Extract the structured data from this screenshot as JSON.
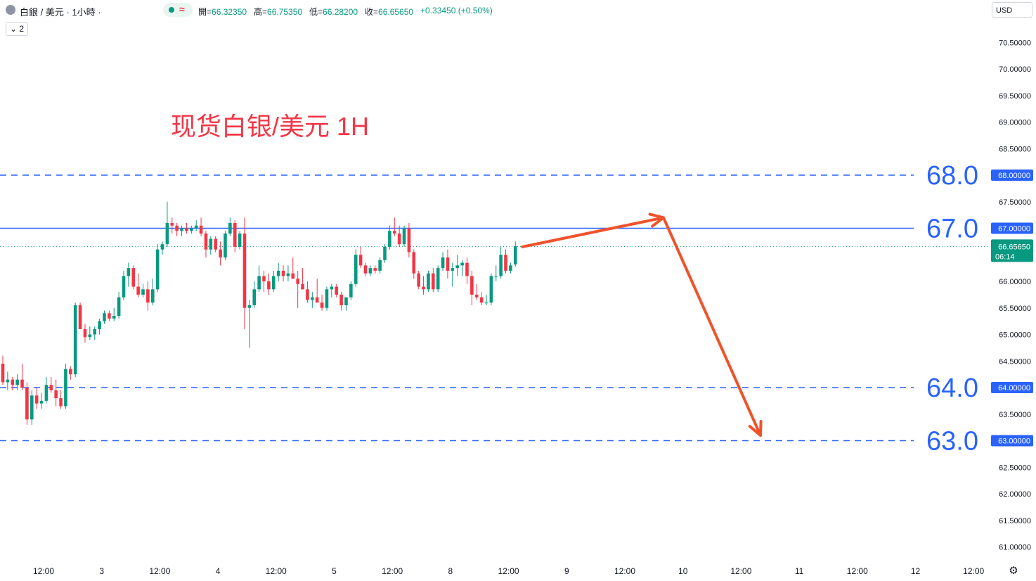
{
  "header": {
    "symbol": "白銀 / 美元 · 1小時 ·",
    "collapse_label": "⌄ 2",
    "currency": "USD",
    "ohlc": [
      {
        "k": "開=",
        "v": "66.32350"
      },
      {
        "k": "高=",
        "v": "66.75350"
      },
      {
        "k": "低=",
        "v": "66.28200"
      },
      {
        "k": "收=",
        "v": "66.65650"
      },
      {
        "k": "",
        "v": "+0.33450 (+0.50%)"
      }
    ]
  },
  "chart_data": {
    "type": "candlestick",
    "title": "现货白银/美元 1H",
    "title_parts": [
      "现货",
      "白银/美元 1H"
    ],
    "ylim": [
      60.8,
      71.0
    ],
    "y_ticks": [
      "61.00000",
      "61.50000",
      "62.00000",
      "62.50000",
      "63.00000",
      "63.50000",
      "64.00000",
      "64.50000",
      "65.00000",
      "65.50000",
      "66.00000",
      "66.50000",
      "67.00000",
      "67.50000",
      "68.00000",
      "68.50000",
      "69.00000",
      "69.50000",
      "70.00000",
      "70.50000"
    ],
    "x_ticks": [
      "12:00",
      "3",
      "12:00",
      "4",
      "12:00",
      "5",
      "12:00",
      "8",
      "12:00",
      "9",
      "12:00",
      "10",
      "12:00",
      "11",
      "12:00",
      "12",
      "12:00"
    ],
    "last_price": {
      "value": "66.65650",
      "countdown": "06:14"
    },
    "levels": [
      {
        "value": 68.0,
        "label": "68.0",
        "axis_label": "68.00000",
        "style": "dashed"
      },
      {
        "value": 67.0,
        "label": "67.0",
        "axis_label": "67.00000",
        "style": "solid"
      },
      {
        "value": 64.0,
        "label": "64.0",
        "axis_label": "64.00000",
        "style": "dashed"
      },
      {
        "value": 63.0,
        "label": "63.0",
        "axis_label": "63.00000",
        "style": "dashed"
      }
    ],
    "projection": {
      "path_prices": [
        66.65,
        67.2,
        63.1
      ]
    },
    "colors": {
      "up": "#089981",
      "down": "#f23645",
      "level": "#2962ff",
      "level_text": "#2962ff",
      "arrow": "#f0532b",
      "title": "#f23645"
    },
    "candles": [
      [
        64.45,
        64.6,
        64.05,
        64.1
      ],
      [
        64.1,
        64.3,
        63.95,
        64.15
      ],
      [
        64.15,
        64.2,
        63.95,
        64.05
      ],
      [
        64.05,
        64.25,
        63.95,
        64.15
      ],
      [
        64.15,
        64.45,
        63.95,
        64.0
      ],
      [
        64.0,
        64.1,
        63.3,
        63.4
      ],
      [
        63.4,
        63.95,
        63.3,
        63.85
      ],
      [
        63.85,
        64.0,
        63.6,
        63.7
      ],
      [
        63.7,
        63.9,
        63.6,
        63.75
      ],
      [
        63.75,
        64.2,
        63.7,
        64.05
      ],
      [
        64.05,
        64.2,
        63.9,
        63.95
      ],
      [
        63.95,
        64.15,
        63.65,
        63.8
      ],
      [
        63.8,
        63.95,
        63.6,
        63.65
      ],
      [
        63.65,
        64.45,
        63.6,
        64.35
      ],
      [
        64.35,
        64.4,
        64.15,
        64.25
      ],
      [
        64.25,
        65.6,
        64.2,
        65.55
      ],
      [
        65.55,
        65.6,
        65.1,
        65.1
      ],
      [
        65.1,
        65.2,
        64.85,
        64.95
      ],
      [
        64.95,
        65.15,
        64.9,
        65.0
      ],
      [
        65.0,
        65.15,
        64.9,
        65.1
      ],
      [
        65.1,
        65.3,
        65.0,
        65.25
      ],
      [
        65.25,
        65.45,
        65.2,
        65.4
      ],
      [
        65.4,
        65.45,
        65.25,
        65.3
      ],
      [
        65.3,
        65.5,
        65.25,
        65.35
      ],
      [
        65.35,
        65.8,
        65.3,
        65.7
      ],
      [
        65.7,
        66.2,
        65.65,
        66.1
      ],
      [
        66.1,
        66.35,
        65.9,
        66.25
      ],
      [
        66.25,
        66.3,
        65.85,
        65.9
      ],
      [
        65.9,
        66.15,
        65.7,
        65.75
      ],
      [
        65.75,
        65.95,
        65.7,
        65.85
      ],
      [
        65.85,
        66.0,
        65.45,
        65.6
      ],
      [
        65.6,
        66.05,
        65.55,
        65.85
      ],
      [
        65.85,
        66.7,
        65.8,
        66.6
      ],
      [
        66.6,
        66.75,
        66.5,
        66.7
      ],
      [
        66.7,
        67.5,
        66.65,
        67.1
      ],
      [
        67.1,
        67.2,
        66.9,
        67.05
      ],
      [
        67.05,
        67.1,
        66.85,
        66.95
      ],
      [
        66.95,
        67.05,
        66.85,
        67.0
      ],
      [
        67.0,
        67.1,
        66.9,
        66.95
      ],
      [
        66.95,
        67.05,
        66.9,
        67.0
      ],
      [
        67.0,
        67.15,
        66.95,
        67.05
      ],
      [
        67.05,
        67.2,
        66.85,
        66.9
      ],
      [
        66.9,
        66.95,
        66.45,
        66.6
      ],
      [
        66.6,
        66.85,
        66.5,
        66.8
      ],
      [
        66.8,
        66.85,
        66.55,
        66.6
      ],
      [
        66.6,
        66.75,
        66.3,
        66.45
      ],
      [
        66.45,
        66.95,
        66.4,
        66.9
      ],
      [
        66.9,
        67.2,
        66.85,
        67.1
      ],
      [
        67.1,
        67.15,
        66.55,
        66.65
      ],
      [
        66.65,
        66.95,
        66.6,
        66.9
      ],
      [
        66.9,
        67.2,
        65.1,
        65.5
      ],
      [
        65.5,
        65.65,
        64.75,
        65.55
      ],
      [
        65.55,
        66.0,
        65.5,
        65.85
      ],
      [
        65.85,
        66.3,
        65.8,
        66.1
      ],
      [
        66.1,
        66.2,
        65.8,
        66.0
      ],
      [
        66.0,
        66.15,
        65.75,
        65.85
      ],
      [
        65.85,
        66.2,
        65.8,
        66.1
      ],
      [
        66.1,
        66.35,
        66.0,
        66.2
      ],
      [
        66.2,
        66.3,
        66.0,
        66.1
      ],
      [
        66.1,
        66.3,
        66.0,
        66.15
      ],
      [
        66.15,
        66.45,
        66.05,
        66.05
      ],
      [
        66.05,
        66.2,
        65.5,
        65.95
      ],
      [
        65.95,
        66.25,
        65.85,
        65.85
      ],
      [
        65.85,
        66.0,
        65.6,
        65.65
      ],
      [
        65.65,
        65.8,
        65.5,
        65.7
      ],
      [
        65.7,
        66.05,
        65.6,
        65.6
      ],
      [
        65.6,
        65.75,
        65.45,
        65.5
      ],
      [
        65.5,
        65.9,
        65.45,
        65.85
      ],
      [
        65.85,
        65.95,
        65.7,
        65.9
      ],
      [
        65.9,
        65.95,
        65.7,
        65.75
      ],
      [
        65.75,
        65.8,
        65.45,
        65.55
      ],
      [
        65.55,
        65.7,
        65.45,
        65.7
      ],
      [
        65.7,
        66.0,
        65.65,
        65.95
      ],
      [
        65.95,
        66.6,
        65.9,
        66.5
      ],
      [
        66.5,
        66.65,
        66.25,
        66.3
      ],
      [
        66.3,
        66.35,
        66.1,
        66.15
      ],
      [
        66.15,
        66.3,
        66.1,
        66.25
      ],
      [
        66.25,
        66.3,
        66.15,
        66.2
      ],
      [
        66.2,
        66.45,
        66.15,
        66.4
      ],
      [
        66.4,
        66.7,
        66.35,
        66.65
      ],
      [
        66.65,
        67.05,
        66.6,
        66.95
      ],
      [
        66.95,
        67.2,
        66.85,
        66.9
      ],
      [
        66.9,
        67.05,
        66.65,
        66.7
      ],
      [
        66.7,
        67.05,
        66.65,
        67.0
      ],
      [
        67.0,
        67.1,
        66.45,
        66.55
      ],
      [
        66.55,
        66.6,
        66.05,
        66.15
      ],
      [
        66.15,
        66.2,
        65.85,
        65.9
      ],
      [
        65.9,
        66.1,
        65.75,
        65.85
      ],
      [
        65.85,
        66.2,
        65.8,
        66.15
      ],
      [
        66.15,
        66.25,
        65.8,
        65.85
      ],
      [
        65.85,
        66.3,
        65.8,
        66.25
      ],
      [
        66.25,
        66.55,
        66.2,
        66.45
      ],
      [
        66.45,
        66.6,
        66.05,
        66.2
      ],
      [
        66.2,
        66.35,
        65.9,
        66.25
      ],
      [
        66.25,
        66.5,
        66.1,
        66.3
      ],
      [
        66.3,
        66.4,
        66.1,
        66.35
      ],
      [
        66.35,
        66.45,
        65.95,
        66.1
      ],
      [
        66.1,
        66.2,
        65.55,
        65.75
      ],
      [
        65.75,
        65.95,
        65.65,
        65.7
      ],
      [
        65.7,
        65.8,
        65.55,
        65.6
      ],
      [
        65.6,
        65.75,
        65.55,
        65.6
      ],
      [
        65.6,
        66.15,
        65.55,
        66.1
      ],
      [
        66.1,
        66.3,
        66.0,
        66.1
      ],
      [
        66.1,
        66.65,
        66.05,
        66.5
      ],
      [
        66.5,
        66.6,
        66.15,
        66.2
      ],
      [
        66.2,
        66.35,
        66.15,
        66.3
      ],
      [
        66.32,
        66.75,
        66.28,
        66.66
      ]
    ]
  }
}
